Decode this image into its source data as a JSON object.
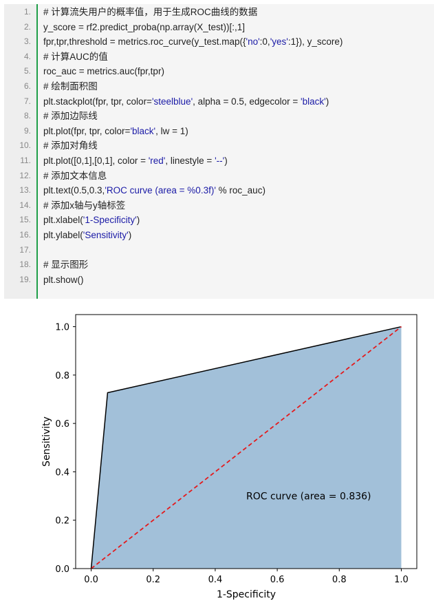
{
  "code": {
    "lines": [
      {
        "num": "1.",
        "segments": [
          {
            "t": "# 计算流失用户的概率值，用于生成ROC曲线的数据",
            "k": "p"
          }
        ]
      },
      {
        "num": "2.",
        "segments": [
          {
            "t": "y_score = rf2.predict_proba(np.array(X_test))[:,1]",
            "k": "p"
          }
        ]
      },
      {
        "num": "3.",
        "segments": [
          {
            "t": "fpr,tpr,threshold = metrics.roc_curve(y_test.map({",
            "k": "p"
          },
          {
            "t": "'no'",
            "k": "s"
          },
          {
            "t": ":0,",
            "k": "p"
          },
          {
            "t": "'yes'",
            "k": "s"
          },
          {
            "t": ":1}), y_score)",
            "k": "p"
          }
        ]
      },
      {
        "num": "4.",
        "segments": [
          {
            "t": "# 计算AUC的值",
            "k": "p"
          }
        ]
      },
      {
        "num": "5.",
        "segments": [
          {
            "t": "roc_auc = metrics.auc(fpr,tpr)",
            "k": "p"
          }
        ]
      },
      {
        "num": "6.",
        "segments": [
          {
            "t": "# 绘制面积图",
            "k": "p"
          }
        ]
      },
      {
        "num": "7.",
        "segments": [
          {
            "t": "plt.stackplot(fpr, tpr, color=",
            "k": "p"
          },
          {
            "t": "'steelblue'",
            "k": "s"
          },
          {
            "t": ", alpha = 0.5, edgecolor = ",
            "k": "p"
          },
          {
            "t": "'black'",
            "k": "s"
          },
          {
            "t": ")",
            "k": "p"
          }
        ]
      },
      {
        "num": "8.",
        "segments": [
          {
            "t": "# 添加边际线",
            "k": "p"
          }
        ]
      },
      {
        "num": "9.",
        "segments": [
          {
            "t": "plt.plot(fpr, tpr, color=",
            "k": "p"
          },
          {
            "t": "'black'",
            "k": "s"
          },
          {
            "t": ", lw = 1)",
            "k": "p"
          }
        ]
      },
      {
        "num": "10.",
        "segments": [
          {
            "t": "# 添加对角线",
            "k": "p"
          }
        ]
      },
      {
        "num": "11.",
        "segments": [
          {
            "t": "plt.plot([0,1],[0,1], color = ",
            "k": "p"
          },
          {
            "t": "'red'",
            "k": "s"
          },
          {
            "t": ", linestyle = ",
            "k": "p"
          },
          {
            "t": "'--'",
            "k": "s"
          },
          {
            "t": ")",
            "k": "p"
          }
        ]
      },
      {
        "num": "12.",
        "segments": [
          {
            "t": "# 添加文本信息",
            "k": "p"
          }
        ]
      },
      {
        "num": "13.",
        "segments": [
          {
            "t": "plt.text(0.5,0.3,",
            "k": "p"
          },
          {
            "t": "'ROC curve (area = %0.3f)'",
            "k": "s"
          },
          {
            "t": " % roc_auc)",
            "k": "p"
          }
        ]
      },
      {
        "num": "14.",
        "segments": [
          {
            "t": "# 添加x轴与y轴标签",
            "k": "p"
          }
        ]
      },
      {
        "num": "15.",
        "segments": [
          {
            "t": "plt.xlabel(",
            "k": "p"
          },
          {
            "t": "'1-Specificity'",
            "k": "s"
          },
          {
            "t": ")",
            "k": "p"
          }
        ]
      },
      {
        "num": "16.",
        "segments": [
          {
            "t": "plt.ylabel(",
            "k": "p"
          },
          {
            "t": "'Sensitivity'",
            "k": "s"
          },
          {
            "t": ")",
            "k": "p"
          }
        ]
      },
      {
        "num": "17.",
        "segments": []
      },
      {
        "num": "18.",
        "segments": [
          {
            "t": "# 显示图形",
            "k": "p"
          }
        ]
      },
      {
        "num": "19.",
        "segments": [
          {
            "t": "plt.show()",
            "k": "p"
          }
        ]
      }
    ]
  },
  "colors": {
    "gutter_rule": "#1e9e48",
    "string_token": "#1a1aa6",
    "area_fill": "#4682b4",
    "diagonal": "#e41a1c"
  },
  "chart_data": {
    "type": "area",
    "xlabel": "1-Specificity",
    "ylabel": "Sensitivity",
    "xlim": [
      -0.05,
      1.05
    ],
    "ylim": [
      0.0,
      1.05
    ],
    "xticks": [
      "0.0",
      "0.2",
      "0.4",
      "0.6",
      "0.8",
      "1.0"
    ],
    "yticks": [
      "0.0",
      "0.2",
      "0.4",
      "0.6",
      "0.8",
      "1.0"
    ],
    "series": [
      {
        "x": [
          0.0,
          0.053,
          1.0
        ],
        "y": [
          0.0,
          0.727,
          1.0
        ],
        "style": "filled-area-black-edge"
      },
      {
        "x": [
          0.0,
          1.0
        ],
        "y": [
          0.0,
          1.0
        ],
        "style": "red-dashed"
      }
    ],
    "annotation": {
      "text": "ROC curve (area = 0.836)",
      "x": 0.5,
      "y": 0.3
    }
  }
}
